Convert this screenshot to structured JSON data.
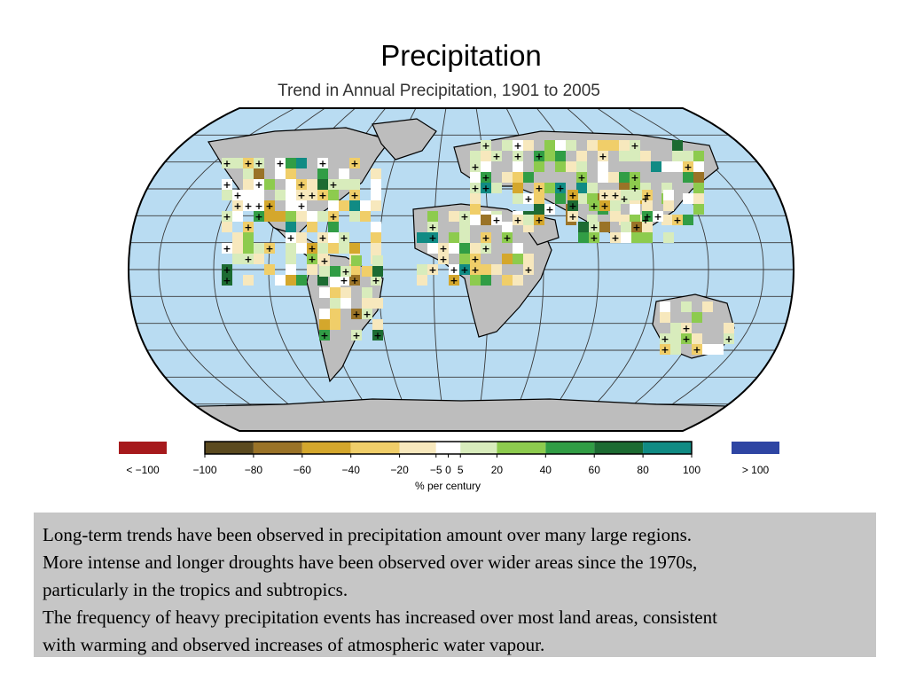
{
  "slide": {
    "title": "Precipitation"
  },
  "figure": {
    "title": "Trend in Annual Precipitation, 1901 to 2005"
  },
  "legend": {
    "low_label": "< −100",
    "high_label": "> 100",
    "low_color": "#a6191c",
    "high_color": "#2e45a3",
    "unit_label": "% per century",
    "bins": [
      {
        "from": -100,
        "to": -80,
        "color": "#5b4a1f"
      },
      {
        "from": -80,
        "to": -60,
        "color": "#9a7327"
      },
      {
        "from": -60,
        "to": -40,
        "color": "#d4a72c"
      },
      {
        "from": -40,
        "to": -20,
        "color": "#f0ce69"
      },
      {
        "from": -20,
        "to": -5,
        "color": "#f7e8bd"
      },
      {
        "from": -5,
        "to": 5,
        "color": "#ffffff"
      },
      {
        "from": 5,
        "to": 20,
        "color": "#d8ecbc"
      },
      {
        "from": 20,
        "to": 40,
        "color": "#8dcb4e"
      },
      {
        "from": 40,
        "to": 60,
        "color": "#319d45"
      },
      {
        "from": 60,
        "to": 80,
        "color": "#1c6b32"
      },
      {
        "from": 80,
        "to": 100,
        "color": "#108b84"
      }
    ],
    "ticks": [
      "−100",
      "−80",
      "−60",
      "−40",
      "−20",
      "−5",
      "0",
      "5",
      "20",
      "40",
      "60",
      "80",
      "100"
    ]
  },
  "map_colors": {
    "ocean": "#b9dcf2",
    "no_data_land": "#bdbdbd",
    "coastline": "#000000",
    "graticule": "#3a3a3a"
  },
  "caption": {
    "lines": [
      "Long-term trends have been observed in precipitation amount over many large regions.",
      "More intense and longer droughts have been observed over wider areas since the 1970s,",
      "particularly in the tropics and subtropics.",
      "The frequency of heavy precipitation events has increased over most land areas, consistent",
      "with warming and observed increases of atmospheric water vapour."
    ]
  }
}
